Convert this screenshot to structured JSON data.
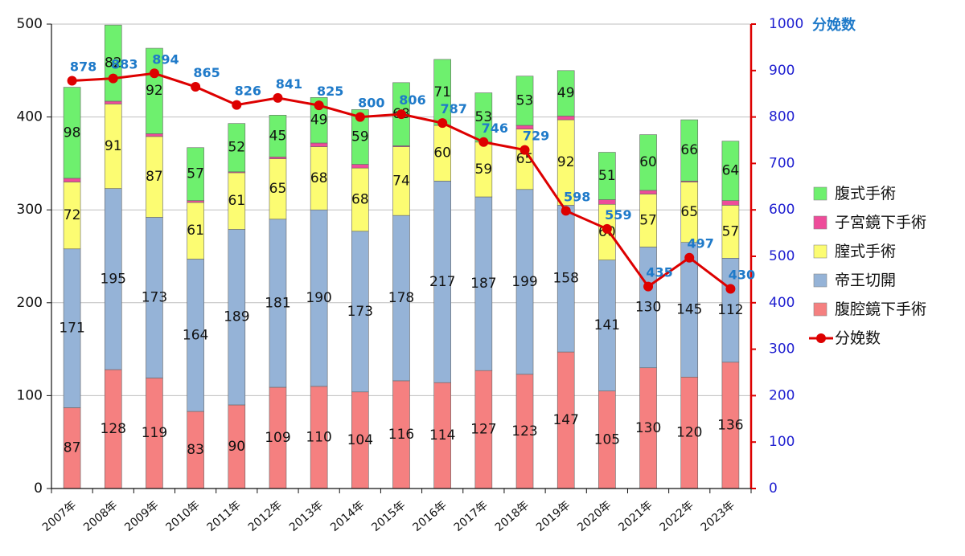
{
  "chart_data": {
    "type": "bar",
    "stacked": true,
    "categories": [
      "2007年",
      "2008年",
      "2009年",
      "2010年",
      "2011年",
      "2012年",
      "2013年",
      "2014年",
      "2015年",
      "2016年",
      "2017年",
      "2018年",
      "2019年",
      "2020年",
      "2021年",
      "2022年",
      "2023年"
    ],
    "series": [
      {
        "name": "腹腔鏡下手術",
        "color": "#f58080",
        "values": [
          87,
          128,
          119,
          83,
          90,
          109,
          110,
          104,
          116,
          114,
          127,
          123,
          147,
          105,
          130,
          120,
          136
        ],
        "labels_shown": [
          true,
          true,
          true,
          true,
          true,
          true,
          true,
          true,
          true,
          true,
          true,
          true,
          true,
          true,
          true,
          true,
          true
        ]
      },
      {
        "name": "帝王切開",
        "color": "#95b3d7",
        "values": [
          171,
          195,
          173,
          164,
          189,
          181,
          190,
          173,
          178,
          217,
          187,
          199,
          158,
          141,
          130,
          145,
          112
        ],
        "labels_shown": [
          true,
          true,
          true,
          true,
          true,
          true,
          true,
          true,
          true,
          true,
          true,
          true,
          true,
          true,
          true,
          true,
          true
        ]
      },
      {
        "name": "膣式手術",
        "color": "#fcfc72",
        "values": [
          72,
          91,
          87,
          61,
          61,
          65,
          68,
          68,
          74,
          60,
          59,
          65,
          92,
          60,
          57,
          65,
          57
        ],
        "labels_shown": [
          true,
          true,
          true,
          true,
          true,
          true,
          true,
          true,
          true,
          true,
          true,
          true,
          true,
          true,
          true,
          true,
          true
        ]
      },
      {
        "name": "子宮鏡下手術",
        "color": "#ee4c9a",
        "values": [
          4,
          3,
          3,
          2,
          1,
          2,
          4,
          4,
          1,
          0,
          0,
          4,
          4,
          5,
          4,
          1,
          5
        ],
        "labels_shown": [
          false,
          false,
          false,
          false,
          false,
          false,
          false,
          false,
          false,
          false,
          false,
          false,
          false,
          false,
          false,
          false,
          false
        ]
      },
      {
        "name": "腹式手術",
        "color": "#6ef06e",
        "values": [
          98,
          82,
          92,
          57,
          52,
          45,
          49,
          59,
          68,
          71,
          53,
          53,
          49,
          51,
          60,
          66,
          64
        ],
        "labels_shown": [
          true,
          true,
          true,
          true,
          true,
          true,
          true,
          true,
          true,
          true,
          true,
          true,
          true,
          true,
          true,
          true,
          true
        ]
      }
    ],
    "line_series": {
      "name": "分娩数",
      "color": "#dd0000",
      "axis": "right",
      "values": [
        878,
        883,
        894,
        865,
        826,
        841,
        825,
        800,
        806,
        787,
        746,
        729,
        598,
        559,
        435,
        497,
        430
      ]
    },
    "y_left": {
      "min": 0,
      "max": 500,
      "ticks": [
        "0",
        "100",
        "200",
        "300",
        "400",
        "500"
      ]
    },
    "y_right": {
      "min": 0,
      "max": 1000,
      "title": "分娩数",
      "ticks": [
        "0",
        "100",
        "200",
        "300",
        "400",
        "500",
        "600",
        "700",
        "800",
        "900",
        "1000"
      ]
    },
    "grid": true,
    "legend_position": "right",
    "legend": [
      {
        "label": "腹式手術",
        "kind": "box",
        "color": "#6ef06e"
      },
      {
        "label": "子宮鏡下手術",
        "kind": "box",
        "color": "#ee4c9a"
      },
      {
        "label": "膣式手術",
        "kind": "box",
        "color": "#fcfc72"
      },
      {
        "label": "帝王切開",
        "kind": "box",
        "color": "#95b3d7"
      },
      {
        "label": "腹腔鏡下手術",
        "kind": "box",
        "color": "#f58080"
      },
      {
        "label": "分娩数",
        "kind": "line",
        "color": "#dd0000"
      }
    ]
  }
}
